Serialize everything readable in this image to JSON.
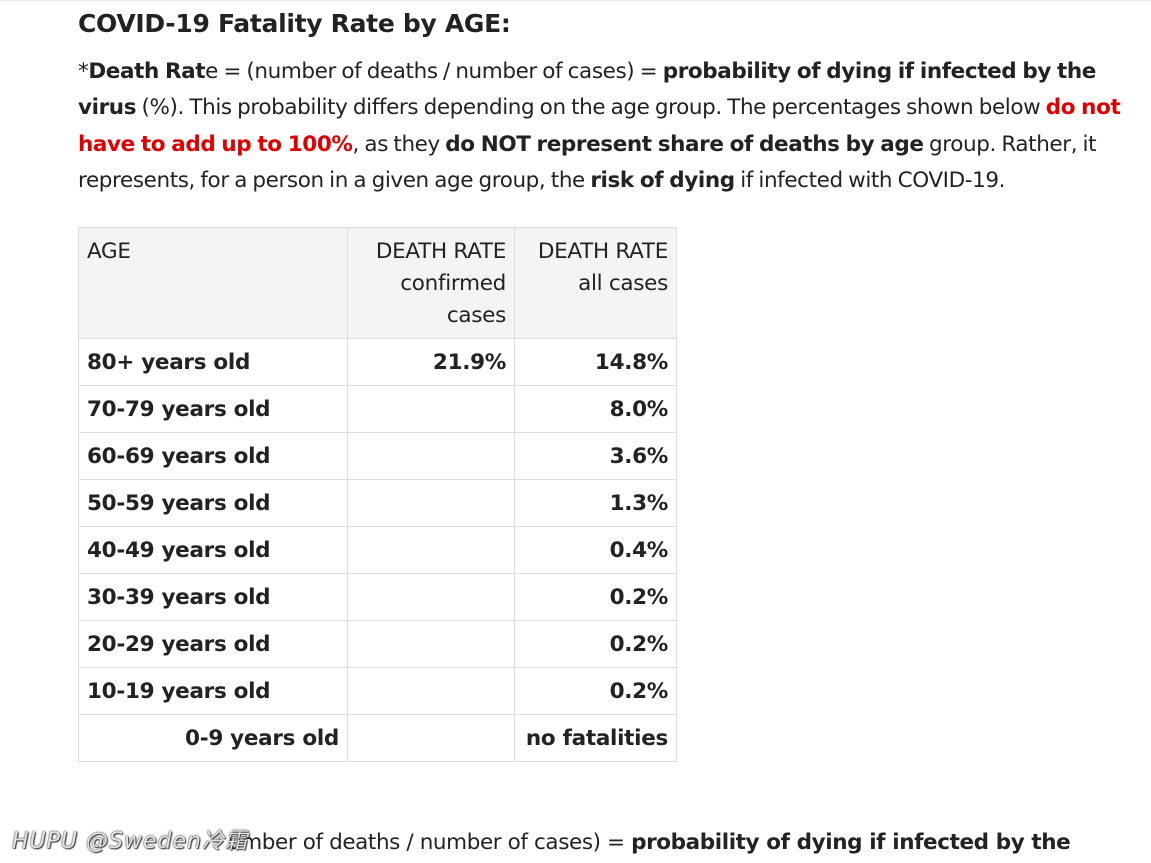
{
  "heading": "COVID-19 Fatality Rate by AGE:",
  "intro": {
    "star": "*",
    "death_rate_bold": "Death Rat",
    "death_rate_tail": "e",
    "formula": " = (number of deaths / number of cases) = ",
    "probability_bold": "probability of dying if infected by the virus",
    "pct_note": " (%). This probability differs depending on the age group. The percentages shown below ",
    "red_bold": "do not have to add up to 100%",
    "as_they": ", as they ",
    "not_share_bold": "do NOT represent share of deaths by age",
    "group_rather": " group. Rather, it represents, for a person in a given age group, the ",
    "risk_bold": "risk of dying",
    "if_infected": " if infected with COVID-19."
  },
  "table": {
    "headers": {
      "age": "AGE",
      "confirmed_line1": "DEATH RATE",
      "confirmed_line2": "confirmed",
      "confirmed_line3": "cases",
      "all_line1": "DEATH RATE",
      "all_line2": "all cases"
    },
    "rows": [
      {
        "age": "80+ years old",
        "confirmed": "21.9%",
        "all": "14.8%"
      },
      {
        "age": "70-79 years old",
        "confirmed": "",
        "all": "8.0%"
      },
      {
        "age": "60-69 years old",
        "confirmed": "",
        "all": "3.6%"
      },
      {
        "age": "50-59 years old",
        "confirmed": "",
        "all": "1.3%"
      },
      {
        "age": "40-49 years old",
        "confirmed": "",
        "all": "0.4%"
      },
      {
        "age": "30-39 years old",
        "confirmed": "",
        "all": "0.2%"
      },
      {
        "age": "20-29 years old",
        "confirmed": "",
        "all": "0.2%"
      },
      {
        "age": "10-19 years old",
        "confirmed": "",
        "all": "0.2%"
      },
      {
        "age": "0-9 years old",
        "confirmed": "",
        "all": "no fatalities"
      }
    ]
  },
  "bottom": {
    "visible_text": "umber of deaths / number of cases) = ",
    "bold_text": "probability of dying if infected by the"
  },
  "watermark": "HUPU @Sweden冷霜"
}
